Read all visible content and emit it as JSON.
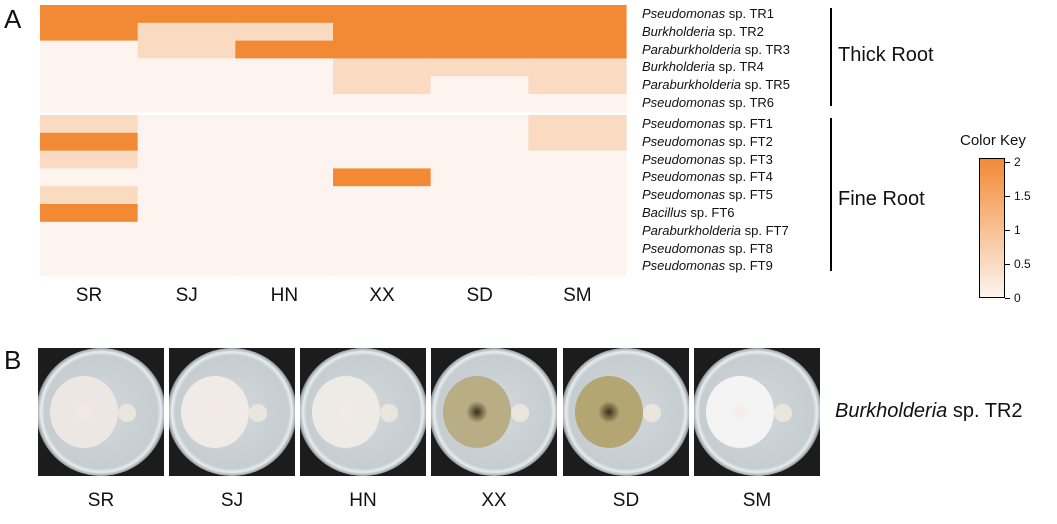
{
  "panels": {
    "a": "A",
    "b": "B"
  },
  "chart_data": {
    "type": "heatmap",
    "columns": [
      "SR",
      "SJ",
      "HN",
      "XX",
      "SD",
      "SM"
    ],
    "groups": [
      {
        "name": "Thick Root",
        "rows": [
          {
            "genus": "Pseudomonas",
            "suffix": "sp. TR1",
            "values": [
              2,
              2,
              2,
              2,
              2,
              2
            ]
          },
          {
            "genus": "Burkholderia",
            "suffix": "sp. TR2",
            "values": [
              2,
              0.5,
              0.5,
              2,
              2,
              2
            ]
          },
          {
            "genus": "Paraburkholderia",
            "suffix": "sp. TR3",
            "values": [
              0,
              0.5,
              2,
              2,
              2,
              2
            ]
          },
          {
            "genus": "Burkholderia",
            "suffix": "sp. TR4",
            "values": [
              0,
              0,
              0,
              0.5,
              0.5,
              0.5
            ]
          },
          {
            "genus": "Paraburkholderia",
            "suffix": "sp. TR5",
            "values": [
              0,
              0,
              0,
              0.5,
              0,
              0.5
            ]
          },
          {
            "genus": "Pseudomonas",
            "suffix": "sp. TR6",
            "values": [
              0,
              0,
              0,
              0,
              0,
              0
            ]
          }
        ]
      },
      {
        "name": "Fine Root",
        "rows": [
          {
            "genus": "Pseudomonas",
            "suffix": "sp. FT1",
            "values": [
              0.5,
              0,
              0,
              0,
              0,
              0.5
            ]
          },
          {
            "genus": "Pseudomonas",
            "suffix": "sp. FT2",
            "values": [
              2,
              0,
              0,
              0,
              0,
              0.5
            ]
          },
          {
            "genus": "Pseudomonas",
            "suffix": "sp. FT3",
            "values": [
              0.5,
              0,
              0,
              0,
              0,
              0
            ]
          },
          {
            "genus": "Pseudomonas",
            "suffix": "sp. FT4",
            "values": [
              0,
              0,
              0,
              2,
              0,
              0
            ]
          },
          {
            "genus": "Pseudomonas",
            "suffix": "sp. FT5",
            "values": [
              0.5,
              0,
              0,
              0,
              0,
              0
            ]
          },
          {
            "genus": "Bacillus",
            "suffix": "sp. FT6",
            "values": [
              2,
              0,
              0,
              0,
              0,
              0
            ]
          },
          {
            "genus": "Paraburkholderia",
            "suffix": "sp. FT7",
            "values": [
              0,
              0,
              0,
              0,
              0,
              0
            ]
          },
          {
            "genus": "Pseudomonas",
            "suffix": "sp. FT8",
            "values": [
              0,
              0,
              0,
              0,
              0,
              0
            ]
          },
          {
            "genus": "Pseudomonas",
            "suffix": "sp. FT9",
            "values": [
              0,
              0,
              0,
              0,
              0,
              0
            ]
          }
        ]
      }
    ],
    "color_key": {
      "title": "Color Key",
      "min": 0,
      "max": 2,
      "ticks": [
        {
          "value": 2,
          "label": "2"
        },
        {
          "value": 1.5,
          "label": "1.5"
        },
        {
          "value": 1,
          "label": "1"
        },
        {
          "value": 0.5,
          "label": "0.5"
        },
        {
          "value": 0,
          "label": "0"
        }
      ],
      "low_color": "#fdf4ef",
      "high_color": "#f28a35"
    }
  },
  "plates": {
    "caption_genus": "Burkholderia",
    "caption_suffix": "sp. TR2",
    "items": [
      {
        "label": "SR",
        "fungus_color": "#ece7e3"
      },
      {
        "label": "SJ",
        "fungus_color": "#f0ebe6"
      },
      {
        "label": "HN",
        "fungus_color": "#eeeae6"
      },
      {
        "label": "XX",
        "fungus_color": "#b8ad84"
      },
      {
        "label": "SD",
        "fungus_color": "#b3a672"
      },
      {
        "label": "SM",
        "fungus_color": "#f4f4f4"
      }
    ]
  }
}
